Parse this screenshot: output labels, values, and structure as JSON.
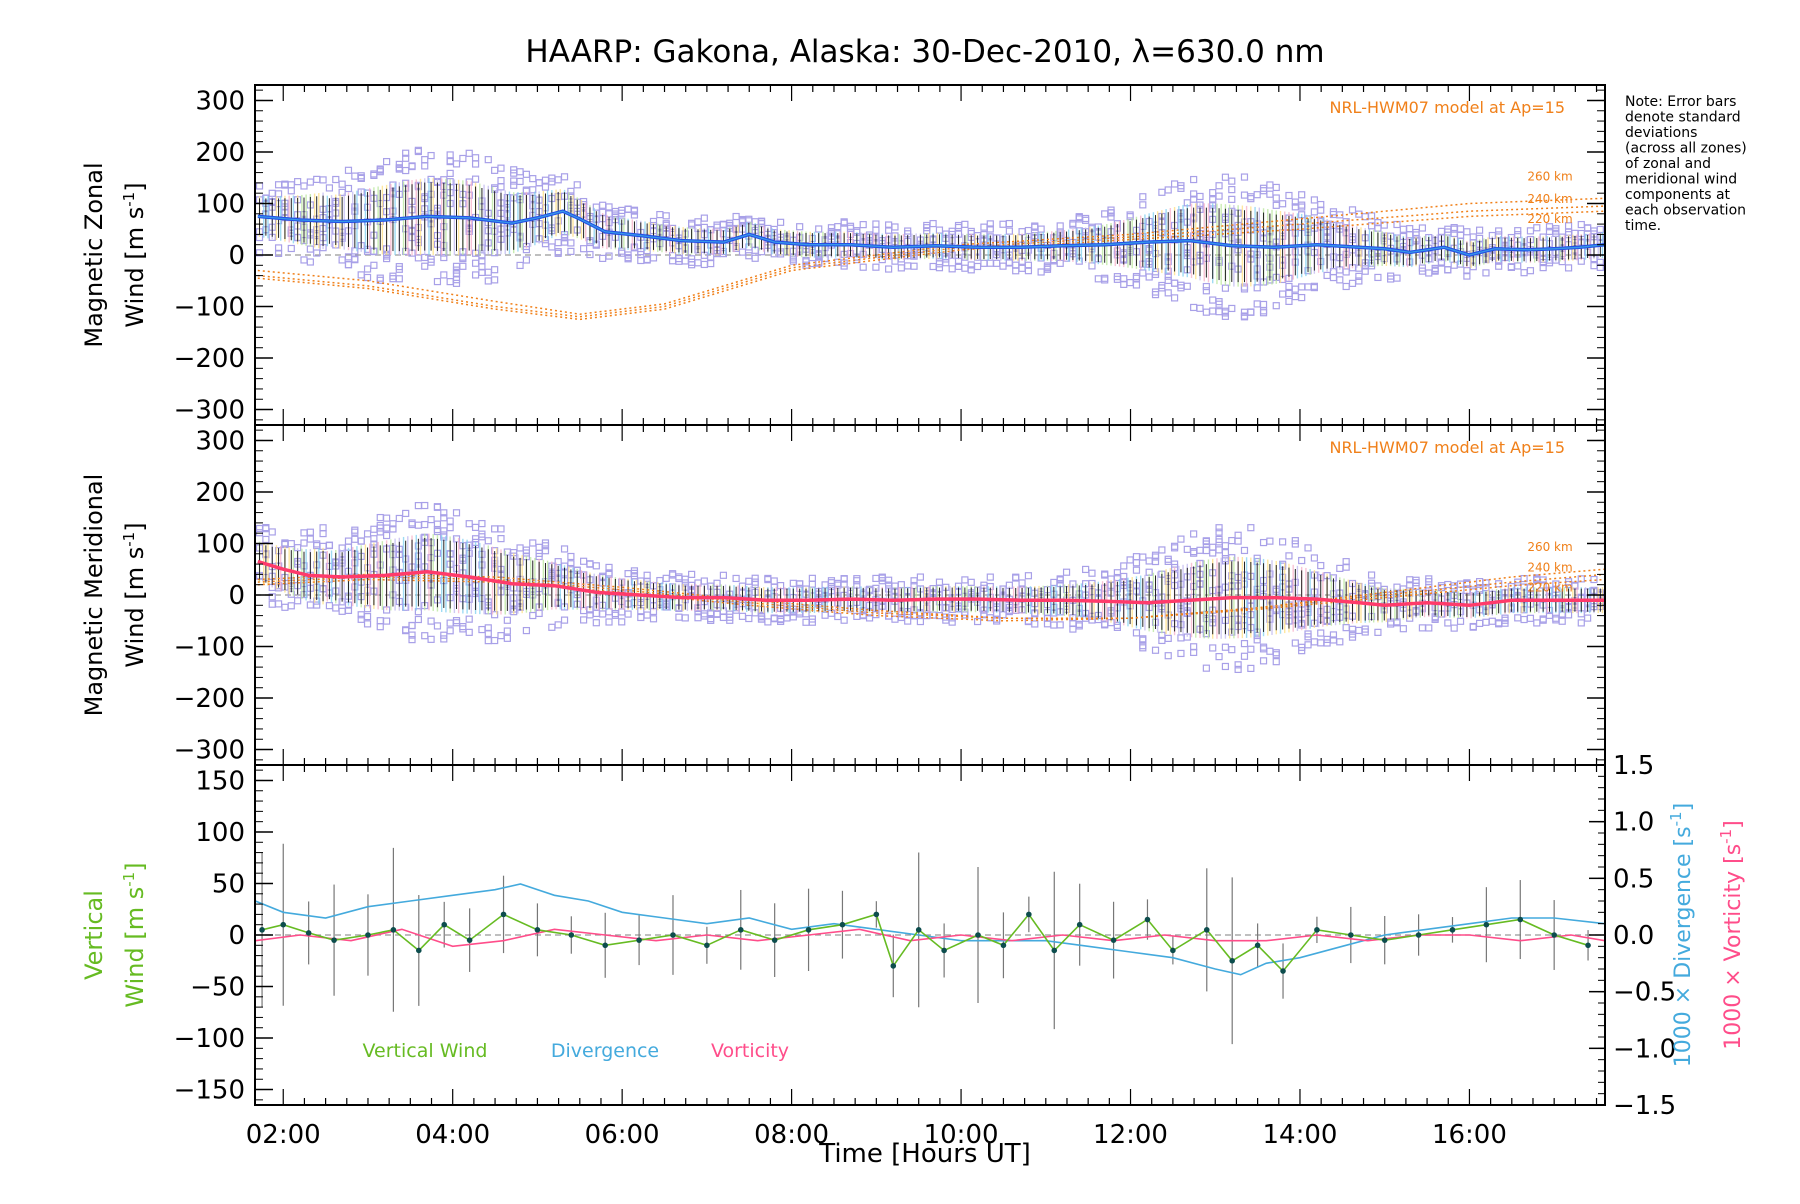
{
  "title": "HAARP: Gakona,  Alaska: 30-Dec-2010, λ=630.0 nm",
  "note_lines": [
    "Note: Error bars",
    "denote standard",
    "deviations",
    "(across all zones)",
    "of zonal and",
    "meridional wind",
    "components at",
    "each observation",
    "time."
  ],
  "model_label": "NRL-HWM07 model at Ap=15",
  "xlabel": "Time [Hours UT]",
  "colors": {
    "zonal": "#2450e6",
    "zonal_light": "#3aa0e8",
    "meridional": "#ff3b6b",
    "model": "#f0801a",
    "scatter": "#a8a0e8",
    "vertical": "#66bb22",
    "divergence": "#44aadd",
    "vorticity": "#ff4d8a",
    "point": "#0d4d4d"
  },
  "chart_data": [
    {
      "type": "line",
      "panel": "zonal",
      "ylabel_line1": "Magnetic Zonal",
      "ylabel_line2": "Wind [m s",
      "ylabel_sup": "-1",
      "ylabel_end": "]",
      "ylim": [
        -330,
        330
      ],
      "xlim": [
        1.6667,
        17.6
      ],
      "xticks": [
        "02:00",
        "04:00",
        "06:00",
        "08:00",
        "10:00",
        "12:00",
        "14:00",
        "16:00"
      ],
      "yticks": [
        300,
        200,
        100,
        0,
        -100,
        -200,
        -300
      ],
      "series": [
        {
          "x": [
            1.7,
            2.2,
            2.7,
            3.2,
            3.7,
            4.2,
            4.7,
            5.0,
            5.3,
            5.5,
            5.8,
            6.2,
            6.7,
            7.2,
            7.5,
            7.8,
            8.2,
            8.7,
            9.2,
            9.7,
            10.2,
            10.7,
            11.2,
            11.7,
            12.2,
            12.7,
            13.2,
            13.7,
            14.2,
            14.7,
            15.0,
            15.3,
            15.7,
            16.0,
            16.3,
            16.7,
            17.0,
            17.3,
            17.6
          ],
          "y": [
            75,
            68,
            65,
            68,
            75,
            72,
            62,
            72,
            85,
            70,
            45,
            38,
            28,
            25,
            40,
            25,
            20,
            20,
            15,
            18,
            15,
            15,
            18,
            20,
            25,
            28,
            18,
            15,
            20,
            15,
            12,
            5,
            15,
            0,
            12,
            10,
            12,
            15,
            20
          ]
        }
      ],
      "model": [
        {
          "label": "260 km",
          "x": [
            1.7,
            3.0,
            4.5,
            5.5,
            6.5,
            8.0,
            10.0,
            12.0,
            14.0,
            16.0,
            17.6
          ],
          "y": [
            -30,
            -50,
            -90,
            -115,
            -95,
            -20,
            20,
            40,
            70,
            100,
            110
          ]
        },
        {
          "label": "240 km",
          "x": [
            1.7,
            3.0,
            4.5,
            5.5,
            6.5,
            8.0,
            10.0,
            12.0,
            14.0,
            16.0,
            17.6
          ],
          "y": [
            -40,
            -60,
            -100,
            -120,
            -100,
            -25,
            15,
            35,
            60,
            85,
            95
          ]
        },
        {
          "label": "220 km",
          "x": [
            1.7,
            3.0,
            4.5,
            5.5,
            6.5,
            8.0,
            10.0,
            12.0,
            14.0,
            16.0,
            17.6
          ],
          "y": [
            -45,
            -65,
            -105,
            -125,
            -105,
            -30,
            10,
            30,
            50,
            75,
            85
          ]
        }
      ]
    },
    {
      "type": "line",
      "panel": "meridional",
      "ylabel_line1": "Magnetic Meridional",
      "ylabel_line2": "Wind [m s",
      "ylabel_sup": "-1",
      "ylabel_end": "]",
      "ylim": [
        -330,
        330
      ],
      "xlim": [
        1.6667,
        17.6
      ],
      "yticks": [
        300,
        200,
        100,
        0,
        -100,
        -200,
        -300
      ],
      "series": [
        {
          "x": [
            1.7,
            2.0,
            2.3,
            2.7,
            3.2,
            3.7,
            4.2,
            4.7,
            5.2,
            5.7,
            6.2,
            6.7,
            7.2,
            7.7,
            8.2,
            8.7,
            9.2,
            9.7,
            10.2,
            10.7,
            11.2,
            11.7,
            12.2,
            12.7,
            13.2,
            13.7,
            14.2,
            14.7,
            15.0,
            15.5,
            16.0,
            16.5,
            17.0,
            17.6
          ],
          "y": [
            65,
            50,
            38,
            35,
            38,
            45,
            35,
            22,
            18,
            5,
            0,
            -5,
            -5,
            -10,
            -10,
            -8,
            -10,
            -8,
            -8,
            -10,
            -10,
            -12,
            -15,
            -10,
            -5,
            -5,
            -8,
            -15,
            -20,
            -15,
            -20,
            -10,
            -10,
            -10
          ]
        }
      ],
      "model": [
        {
          "label": "260 km",
          "x": [
            1.7,
            3.0,
            4.5,
            6.0,
            7.5,
            9.0,
            10.5,
            12.0,
            13.5,
            15.0,
            16.5,
            17.6
          ],
          "y": [
            30,
            40,
            35,
            15,
            -10,
            -30,
            -45,
            -45,
            -25,
            5,
            35,
            50
          ]
        },
        {
          "label": "240 km",
          "x": [
            1.7,
            3.0,
            4.5,
            6.0,
            7.5,
            9.0,
            10.5,
            12.0,
            13.5,
            15.0,
            16.5,
            17.6
          ],
          "y": [
            25,
            35,
            30,
            10,
            -15,
            -35,
            -45,
            -45,
            -25,
            0,
            25,
            40
          ]
        },
        {
          "label": "220 km",
          "x": [
            1.7,
            3.0,
            4.5,
            6.0,
            7.5,
            9.0,
            10.5,
            12.0,
            13.5,
            15.0,
            16.5,
            17.6
          ],
          "y": [
            20,
            30,
            25,
            5,
            -20,
            -40,
            -50,
            -45,
            -28,
            -5,
            18,
            30
          ]
        }
      ]
    },
    {
      "type": "line",
      "panel": "vertical",
      "ylabel_left_line1": "Vertical",
      "ylabel_left_line2": "Wind [m s",
      "ylabel_sup": "-1",
      "ylabel_end": "]",
      "ylabel_right1": "1000 × Divergence [s",
      "ylabel_right2": "1000 × Vorticity [s",
      "ylim": [
        -165,
        165
      ],
      "y2lim": [
        -1.5,
        1.5
      ],
      "xlim": [
        1.6667,
        17.6
      ],
      "yticks": [
        150,
        100,
        50,
        0,
        -50,
        -100,
        -150
      ],
      "y2ticks": [
        "1.5",
        "1.0",
        "0.5",
        "0.0",
        "−0.5",
        "−1.0",
        "−1.5"
      ],
      "y2tick_values": [
        1.5,
        1.0,
        0.5,
        0.0,
        -0.5,
        -1.0,
        -1.5
      ],
      "legend": [
        "Vertical Wind",
        "Divergence",
        "Vorticity"
      ],
      "series": [
        {
          "name": "Vertical Wind",
          "x": [
            1.75,
            2.0,
            2.3,
            2.6,
            3.0,
            3.3,
            3.6,
            3.9,
            4.2,
            4.6,
            5.0,
            5.4,
            5.8,
            6.2,
            6.6,
            7.0,
            7.4,
            7.8,
            8.2,
            8.6,
            9.0,
            9.2,
            9.5,
            9.8,
            10.2,
            10.5,
            10.8,
            11.1,
            11.4,
            11.8,
            12.2,
            12.5,
            12.9,
            13.2,
            13.5,
            13.8,
            14.2,
            14.6,
            15.0,
            15.4,
            15.8,
            16.2,
            16.6,
            17.0,
            17.4
          ],
          "y": [
            5,
            10,
            2,
            -5,
            0,
            5,
            -15,
            10,
            -5,
            20,
            5,
            0,
            -10,
            -5,
            0,
            -10,
            5,
            -5,
            5,
            10,
            20,
            -30,
            5,
            -15,
            0,
            -10,
            20,
            -15,
            10,
            -5,
            15,
            -15,
            5,
            -25,
            -10,
            -35,
            5,
            0,
            -5,
            0,
            5,
            10,
            15,
            0,
            -10
          ]
        },
        {
          "name": "Divergence",
          "x": [
            1.67,
            2.0,
            2.5,
            3.0,
            3.5,
            4.0,
            4.5,
            4.8,
            5.2,
            5.6,
            6.0,
            6.5,
            7.0,
            7.5,
            8.0,
            8.5,
            9.0,
            9.5,
            10.0,
            10.5,
            11.0,
            11.5,
            12.0,
            12.5,
            13.0,
            13.3,
            13.6,
            14.0,
            14.5,
            15.0,
            15.5,
            16.0,
            16.5,
            17.0,
            17.6
          ],
          "y": [
            0.3,
            0.2,
            0.15,
            0.25,
            0.3,
            0.35,
            0.4,
            0.45,
            0.35,
            0.3,
            0.2,
            0.15,
            0.1,
            0.15,
            0.05,
            0.1,
            0.05,
            0.0,
            -0.05,
            -0.05,
            -0.05,
            -0.1,
            -0.15,
            -0.2,
            -0.3,
            -0.35,
            -0.25,
            -0.2,
            -0.1,
            0.0,
            0.05,
            0.1,
            0.15,
            0.15,
            0.1
          ]
        },
        {
          "name": "Vorticity",
          "x": [
            1.67,
            2.2,
            2.8,
            3.4,
            4.0,
            4.6,
            5.2,
            5.8,
            6.4,
            7.0,
            7.6,
            8.2,
            8.8,
            9.4,
            10.0,
            10.6,
            11.2,
            11.8,
            12.4,
            13.0,
            13.6,
            14.2,
            14.8,
            15.4,
            16.0,
            16.6,
            17.2,
            17.6
          ],
          "y": [
            -0.05,
            0.0,
            -0.05,
            0.05,
            -0.1,
            -0.05,
            0.05,
            0.0,
            -0.05,
            0.0,
            -0.05,
            0.0,
            0.05,
            -0.05,
            0.0,
            -0.05,
            0.0,
            -0.05,
            0.0,
            -0.05,
            -0.05,
            0.0,
            -0.05,
            0.0,
            0.0,
            -0.05,
            0.0,
            -0.05
          ]
        }
      ]
    }
  ]
}
